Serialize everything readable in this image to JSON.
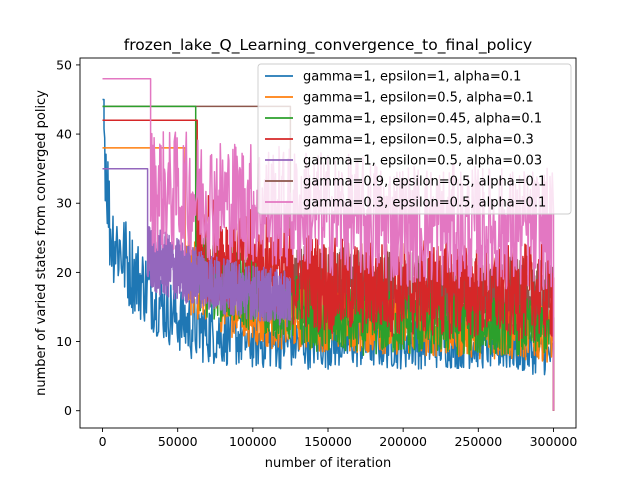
{
  "chart_data": {
    "type": "line",
    "title": "frozen_lake_Q_Learning_convergence_to_final_policy",
    "xlabel": "number of iteration",
    "ylabel": "number of varied states from converged policy",
    "xlim": [
      -15000,
      315000
    ],
    "ylim": [
      -2.5,
      51
    ],
    "xticks": [
      0,
      50000,
      100000,
      150000,
      200000,
      250000,
      300000
    ],
    "yticks": [
      0,
      10,
      20,
      30,
      40,
      50
    ],
    "legend_position": "upper-right",
    "grid": false,
    "series": [
      {
        "name": "gamma=1, epsilon=1, alpha=0.1",
        "color": "#1f77b4",
        "plateau": {
          "start": 45,
          "hold_until": 1000
        },
        "envelope": [
          {
            "x": 0,
            "y": 45,
            "spread": 9
          },
          {
            "x": 5000,
            "y": 26,
            "spread": 7
          },
          {
            "x": 20000,
            "y": 20,
            "spread": 6
          },
          {
            "x": 40000,
            "y": 15,
            "spread": 5
          },
          {
            "x": 60000,
            "y": 12,
            "spread": 5
          },
          {
            "x": 100000,
            "y": 10,
            "spread": 4
          },
          {
            "x": 150000,
            "y": 10,
            "spread": 4
          },
          {
            "x": 200000,
            "y": 10,
            "spread": 4
          },
          {
            "x": 250000,
            "y": 10,
            "spread": 4
          },
          {
            "x": 300000,
            "y": 8,
            "spread": 3
          }
        ],
        "end_drop": 0
      },
      {
        "name": "gamma=1, epsilon=0.5, alpha=0.1",
        "color": "#ff7f0e",
        "plateau": {
          "start": 38,
          "hold_until": 55000
        },
        "envelope": [
          {
            "x": 55000,
            "y": 20,
            "spread": 6
          },
          {
            "x": 100000,
            "y": 14,
            "spread": 5
          },
          {
            "x": 200000,
            "y": 12,
            "spread": 4
          },
          {
            "x": 300000,
            "y": 11,
            "spread": 4
          }
        ],
        "end_drop": 0
      },
      {
        "name": "gamma=1, epsilon=0.45, alpha=0.1",
        "color": "#2ca02c",
        "plateau": {
          "start": 44,
          "hold_until": 62000
        },
        "envelope": [
          {
            "x": 62000,
            "y": 20,
            "spread": 6
          },
          {
            "x": 150000,
            "y": 13,
            "spread": 5
          },
          {
            "x": 300000,
            "y": 12,
            "spread": 4
          }
        ],
        "end_drop": 0
      },
      {
        "name": "gamma=1, epsilon=0.5, alpha=0.3",
        "color": "#d62728",
        "plateau": {
          "start": 42,
          "hold_until": 63000
        },
        "envelope": [
          {
            "x": 63000,
            "y": 24,
            "spread": 8
          },
          {
            "x": 150000,
            "y": 18,
            "spread": 7
          },
          {
            "x": 300000,
            "y": 17,
            "spread": 7
          }
        ],
        "end_drop": 0
      },
      {
        "name": "gamma=1, epsilon=0.5, alpha=0.03",
        "color": "#9467bd",
        "plateau": {
          "start": 35,
          "hold_until": 30000
        },
        "envelope": [
          {
            "x": 30000,
            "y": 22,
            "spread": 5
          },
          {
            "x": 80000,
            "y": 18,
            "spread": 4
          },
          {
            "x": 125000,
            "y": 16,
            "spread": 4
          }
        ],
        "end_drop": 13
      },
      {
        "name": "gamma=0.9, epsilon=0.5, alpha=0.1",
        "color": "#8c564b",
        "plateau": {
          "start": 44,
          "hold_until": 125000
        },
        "envelope": [
          {
            "x": 125000,
            "y": 18,
            "spread": 6
          },
          {
            "x": 200000,
            "y": 17,
            "spread": 6
          },
          {
            "x": 300000,
            "y": 16,
            "spread": 6
          }
        ],
        "end_drop": 0
      },
      {
        "name": "gamma=0.3, epsilon=0.5, alpha=0.1",
        "color": "#e377c2",
        "plateau": {
          "start": 48,
          "hold_until": 32000
        },
        "envelope": [
          {
            "x": 32000,
            "y": 32,
            "spread": 9
          },
          {
            "x": 100000,
            "y": 30,
            "spread": 9
          },
          {
            "x": 200000,
            "y": 27,
            "spread": 9
          },
          {
            "x": 300000,
            "y": 26,
            "spread": 9
          }
        ],
        "end_drop": 0
      }
    ]
  }
}
